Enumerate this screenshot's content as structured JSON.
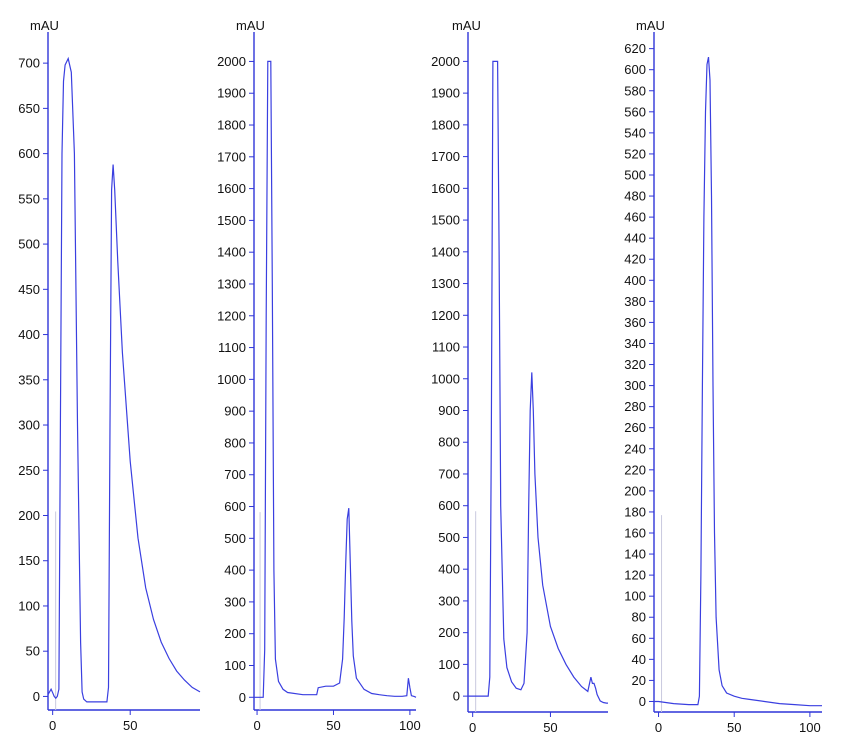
{
  "chart_data": [
    {
      "type": "line",
      "ylabel": "mAU",
      "xlim": [
        -3,
        95
      ],
      "ylim": [
        -15,
        730
      ],
      "yticks": [
        0,
        50,
        100,
        150,
        200,
        250,
        300,
        350,
        400,
        450,
        500,
        550,
        600,
        650,
        700
      ],
      "xticks": [
        0,
        50
      ],
      "series": [
        {
          "color": "#3a3fe0",
          "x": [
            -3,
            -1,
            0,
            1,
            2,
            3,
            4,
            5,
            6,
            7,
            8,
            10,
            12,
            14,
            16,
            18,
            19,
            20,
            22,
            25,
            30,
            35,
            36,
            37,
            38,
            39,
            40,
            42,
            45,
            50,
            55,
            60,
            65,
            70,
            75,
            80,
            85,
            90,
            95
          ],
          "y": [
            2,
            8,
            4,
            0,
            -2,
            0,
            8,
            300,
            600,
            680,
            698,
            705,
            690,
            600,
            300,
            60,
            5,
            -3,
            -6,
            -6,
            -6,
            -6,
            10,
            300,
            560,
            588,
            560,
            480,
            380,
            260,
            175,
            120,
            85,
            60,
            42,
            28,
            18,
            10,
            5
          ]
        }
      ]
    },
    {
      "type": "line",
      "ylabel": "mAU",
      "xlim": [
        -2,
        104
      ],
      "ylim": [
        -40,
        2080
      ],
      "yticks": [
        0,
        100,
        200,
        300,
        400,
        500,
        600,
        700,
        800,
        900,
        1000,
        1100,
        1200,
        1300,
        1400,
        1500,
        1600,
        1700,
        1800,
        1900,
        2000
      ],
      "xticks": [
        0,
        50,
        100
      ],
      "series": [
        {
          "color": "#3a3fe0",
          "x": [
            -2,
            2,
            4,
            5,
            6,
            7,
            9,
            10,
            11,
            12,
            14,
            17,
            20,
            30,
            39,
            40,
            45,
            50,
            54,
            56,
            57,
            58,
            59,
            60,
            61,
            62,
            63,
            65,
            70,
            75,
            80,
            85,
            90,
            95,
            98,
            99,
            100,
            101,
            103,
            104
          ],
          "y": [
            0,
            0,
            0,
            150,
            1200,
            2000,
            2000,
            1300,
            400,
            120,
            50,
            25,
            15,
            8,
            8,
            30,
            35,
            35,
            45,
            120,
            250,
            420,
            560,
            595,
            420,
            240,
            130,
            60,
            25,
            12,
            8,
            5,
            3,
            3,
            5,
            60,
            30,
            5,
            2,
            0
          ]
        }
      ]
    },
    {
      "type": "line",
      "ylabel": "mAU",
      "xlim": [
        -3,
        87
      ],
      "ylim": [
        -50,
        2080
      ],
      "yticks": [
        0,
        100,
        200,
        300,
        400,
        500,
        600,
        700,
        800,
        900,
        1000,
        1100,
        1200,
        1300,
        1400,
        1500,
        1600,
        1700,
        1800,
        1900,
        2000
      ],
      "xticks": [
        0,
        50
      ],
      "series": [
        {
          "color": "#3a3fe0",
          "x": [
            -3,
            10,
            11,
            12,
            13,
            15,
            16,
            17,
            18,
            20,
            22,
            25,
            28,
            31,
            33,
            35,
            36,
            37,
            38,
            39,
            40,
            42,
            45,
            50,
            55,
            60,
            65,
            70,
            74,
            76,
            77,
            78,
            79,
            80,
            82,
            84,
            86,
            87
          ],
          "y": [
            0,
            0,
            60,
            800,
            2000,
            2000,
            2000,
            1400,
            600,
            180,
            90,
            45,
            25,
            20,
            40,
            200,
            600,
            900,
            1020,
            900,
            700,
            500,
            350,
            220,
            150,
            100,
            60,
            30,
            15,
            60,
            40,
            40,
            25,
            5,
            -15,
            -20,
            -22,
            -22
          ]
        }
      ]
    },
    {
      "type": "line",
      "ylabel": "mAU",
      "xlim": [
        -3,
        108
      ],
      "ylim": [
        -10,
        632
      ],
      "yticks": [
        0,
        20,
        40,
        60,
        80,
        100,
        120,
        140,
        160,
        180,
        200,
        220,
        240,
        260,
        280,
        300,
        320,
        340,
        360,
        380,
        400,
        420,
        440,
        460,
        480,
        500,
        520,
        540,
        560,
        580,
        600,
        620
      ],
      "xticks": [
        0,
        50,
        100
      ],
      "series": [
        {
          "color": "#3a3fe0",
          "x": [
            -3,
            0,
            10,
            20,
            26,
            27,
            28,
            29,
            30,
            31,
            32,
            33,
            34,
            35,
            36,
            37,
            38,
            40,
            42,
            45,
            50,
            55,
            60,
            70,
            80,
            90,
            100,
            108
          ],
          "y": [
            0,
            0,
            -2,
            -3,
            -3,
            5,
            120,
            300,
            460,
            560,
            605,
            612,
            590,
            480,
            300,
            160,
            80,
            30,
            15,
            8,
            5,
            3,
            2,
            0,
            -2,
            -3,
            -4,
            -4
          ]
        }
      ]
    }
  ]
}
